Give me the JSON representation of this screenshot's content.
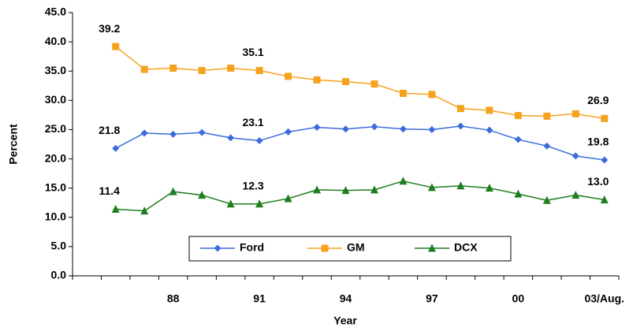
{
  "chart_data": {
    "type": "line",
    "x_label": "Year",
    "y_label": "Percent",
    "categories": [
      null,
      null,
      null,
      "88",
      null,
      null,
      "91",
      null,
      null,
      "94",
      null,
      null,
      "97",
      null,
      null,
      "00",
      null,
      null,
      "03/Aug."
    ],
    "series": [
      {
        "name": "Ford",
        "color": "#3c6cdc",
        "marker": "diamond",
        "values": [
          null,
          21.8,
          24.4,
          24.2,
          24.5,
          23.6,
          23.1,
          24.6,
          25.4,
          25.1,
          25.5,
          25.1,
          25.0,
          25.6,
          24.9,
          23.3,
          22.2,
          20.5,
          19.8
        ],
        "value_labels": [
          null,
          "21.8",
          null,
          null,
          null,
          null,
          "23.1",
          null,
          null,
          null,
          null,
          null,
          null,
          null,
          null,
          null,
          null,
          null,
          "19.8"
        ]
      },
      {
        "name": "GM",
        "color": "#f5a21e",
        "marker": "square",
        "values": [
          null,
          39.2,
          35.3,
          35.5,
          35.1,
          35.5,
          35.1,
          34.1,
          33.5,
          33.2,
          32.8,
          31.2,
          31.0,
          28.6,
          28.3,
          27.4,
          27.3,
          27.7,
          26.9
        ],
        "value_labels": [
          null,
          "39.2",
          null,
          null,
          null,
          null,
          "35.1",
          null,
          null,
          null,
          null,
          null,
          null,
          null,
          null,
          null,
          null,
          null,
          "26.9"
        ]
      },
      {
        "name": "DCX",
        "color": "#1e7d1e",
        "marker": "triangle",
        "values": [
          null,
          11.4,
          11.1,
          14.4,
          13.8,
          12.3,
          12.3,
          13.2,
          14.7,
          14.6,
          14.7,
          16.2,
          15.1,
          15.4,
          15.0,
          14.0,
          12.9,
          13.8,
          13.0
        ],
        "value_labels": [
          null,
          "11.4",
          null,
          null,
          null,
          null,
          "12.3",
          null,
          null,
          null,
          null,
          null,
          null,
          null,
          null,
          null,
          null,
          null,
          "13.0"
        ]
      }
    ],
    "ylim": [
      0,
      45
    ],
    "yticks": [
      {
        "value": 0,
        "label": "0.0"
      },
      {
        "value": 5,
        "label": "5.0"
      },
      {
        "value": 10,
        "label": "10.0"
      },
      {
        "value": 15,
        "label": "15.0"
      },
      {
        "value": 20,
        "label": "20.0"
      },
      {
        "value": 25,
        "label": "25.0"
      },
      {
        "value": 30,
        "label": "30.0"
      },
      {
        "value": 35,
        "label": "35.0"
      },
      {
        "value": 40,
        "label": "40.0"
      },
      {
        "value": 45,
        "label": "45.0"
      }
    ],
    "grid": false,
    "legend": "bottom"
  }
}
